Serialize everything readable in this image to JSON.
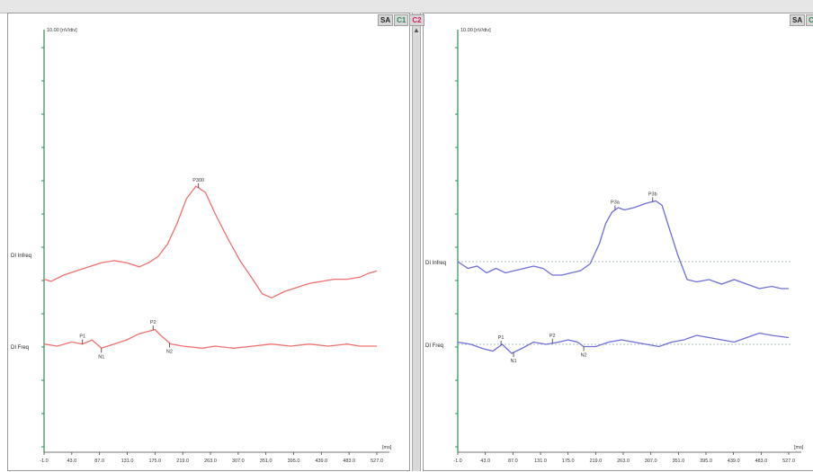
{
  "colors": {
    "axis": "#2e8b57",
    "red": "#f07070",
    "blue": "#6e6ed8",
    "gray": "#9aa"
  },
  "panes": [
    {
      "chips": [
        {
          "label": "SA",
          "color": "#222"
        },
        {
          "label": "C1",
          "color": "#2e8b57"
        },
        {
          "label": "C2",
          "color": "#d81b60"
        }
      ],
      "scale": "10.00 [nV/div]",
      "unit": "[ms]",
      "xticks": [
        "-1.0",
        "43.0",
        "87.0",
        "131.0",
        "175.0",
        "219.0",
        "263.0",
        "307.0",
        "351.0",
        "395.0",
        "439.0",
        "483.0",
        "527.0"
      ],
      "labels": {
        "infreq": "DI Infreq",
        "freq": "DI Freq"
      },
      "traces": [
        {
          "id": "infreq",
          "color": "#f07070",
          "points": [
            [
              -1,
              -12
            ],
            [
              10,
              -13
            ],
            [
              30,
              -10
            ],
            [
              50,
              -8
            ],
            [
              70,
              -6
            ],
            [
              90,
              -4
            ],
            [
              110,
              -3
            ],
            [
              130,
              -4
            ],
            [
              150,
              -6
            ],
            [
              165,
              -4
            ],
            [
              180,
              -1
            ],
            [
              195,
              5
            ],
            [
              210,
              15
            ],
            [
              225,
              27
            ],
            [
              240,
              33
            ],
            [
              255,
              30
            ],
            [
              270,
              20
            ],
            [
              290,
              8
            ],
            [
              310,
              -3
            ],
            [
              330,
              -12
            ],
            [
              345,
              -19
            ],
            [
              360,
              -21
            ],
            [
              380,
              -18
            ],
            [
              400,
              -16
            ],
            [
              420,
              -14
            ],
            [
              440,
              -13
            ],
            [
              460,
              -12
            ],
            [
              480,
              -12
            ],
            [
              500,
              -11
            ],
            [
              515,
              -9
            ],
            [
              527,
              -8
            ]
          ]
        },
        {
          "id": "freq",
          "color": "#f07070",
          "points": [
            [
              -1,
              1
            ],
            [
              20,
              0
            ],
            [
              43,
              2
            ],
            [
              60,
              1
            ],
            [
              75,
              3
            ],
            [
              90,
              -1
            ],
            [
              110,
              1
            ],
            [
              130,
              3
            ],
            [
              150,
              6
            ],
            [
              175,
              8
            ],
            [
              185,
              5
            ],
            [
              200,
              1
            ],
            [
              219,
              0
            ],
            [
              250,
              -1
            ],
            [
              270,
              0
            ],
            [
              300,
              -1
            ],
            [
              330,
              0
            ],
            [
              360,
              1
            ],
            [
              390,
              0
            ],
            [
              420,
              1
            ],
            [
              450,
              0
            ],
            [
              480,
              1
            ],
            [
              500,
              0
            ],
            [
              527,
              0
            ]
          ]
        }
      ],
      "peaks": [
        {
          "label": "P300",
          "x": 244,
          "trace": "infreq"
        },
        {
          "label": "P1",
          "x": 60,
          "trace": "freq"
        },
        {
          "label": "N1",
          "x": 90,
          "trace": "freq"
        },
        {
          "label": "P2",
          "x": 172,
          "trace": "freq"
        },
        {
          "label": "N2",
          "x": 198,
          "trace": "freq"
        }
      ],
      "dashed": false
    },
    {
      "chips": [
        {
          "label": "SA",
          "color": "#222"
        },
        {
          "label": "C1",
          "color": "#2e8b57"
        }
      ],
      "scale": "10.00 [nV/div]",
      "unit": "[ms]",
      "xticks": [
        "-1.0",
        "43.0",
        "87.0",
        "131.0",
        "175.0",
        "219.0",
        "263.0",
        "307.0",
        "351.0",
        "395.0",
        "439.0",
        "483.0",
        "527.0"
      ],
      "labels": {
        "infreq": "DI Infreq",
        "freq": "DI Freq"
      },
      "traces": [
        {
          "id": "infreq",
          "color": "#6e6ed8",
          "points": [
            [
              -1,
              0
            ],
            [
              15,
              -3
            ],
            [
              30,
              -2
            ],
            [
              45,
              -5
            ],
            [
              60,
              -3
            ],
            [
              75,
              -5
            ],
            [
              90,
              -4
            ],
            [
              105,
              -3
            ],
            [
              120,
              -2
            ],
            [
              135,
              -3
            ],
            [
              150,
              -6
            ],
            [
              165,
              -6
            ],
            [
              180,
              -5
            ],
            [
              195,
              -4
            ],
            [
              210,
              -1
            ],
            [
              225,
              8
            ],
            [
              235,
              17
            ],
            [
              245,
              22
            ],
            [
              255,
              24
            ],
            [
              265,
              23
            ],
            [
              280,
              24
            ],
            [
              300,
              26
            ],
            [
              315,
              27
            ],
            [
              325,
              25
            ],
            [
              335,
              16
            ],
            [
              350,
              3
            ],
            [
              365,
              -8
            ],
            [
              380,
              -9
            ],
            [
              400,
              -8
            ],
            [
              420,
              -10
            ],
            [
              440,
              -8
            ],
            [
              460,
              -10
            ],
            [
              480,
              -12
            ],
            [
              500,
              -11
            ],
            [
              515,
              -12
            ],
            [
              527,
              -12
            ]
          ]
        },
        {
          "id": "freq",
          "color": "#6e6ed8",
          "points": [
            [
              -1,
              1
            ],
            [
              20,
              0
            ],
            [
              40,
              -2
            ],
            [
              55,
              -3
            ],
            [
              70,
              0
            ],
            [
              85,
              -4
            ],
            [
              100,
              -2
            ],
            [
              120,
              1
            ],
            [
              140,
              0
            ],
            [
              160,
              1
            ],
            [
              175,
              2
            ],
            [
              190,
              1
            ],
            [
              200,
              -1
            ],
            [
              219,
              -1
            ],
            [
              240,
              1
            ],
            [
              260,
              2
            ],
            [
              280,
              1
            ],
            [
              300,
              0
            ],
            [
              320,
              -1
            ],
            [
              340,
              1
            ],
            [
              360,
              2
            ],
            [
              380,
              4
            ],
            [
              400,
              3
            ],
            [
              420,
              2
            ],
            [
              440,
              1
            ],
            [
              460,
              3
            ],
            [
              480,
              5
            ],
            [
              500,
              4
            ],
            [
              527,
              3
            ]
          ]
        }
      ],
      "peaks": [
        {
          "label": "P3a",
          "x": 250,
          "trace": "infreq"
        },
        {
          "label": "P3b",
          "x": 310,
          "trace": "infreq"
        },
        {
          "label": "P1",
          "x": 68,
          "trace": "freq"
        },
        {
          "label": "N1",
          "x": 88,
          "trace": "freq"
        },
        {
          "label": "P2",
          "x": 150,
          "trace": "freq"
        },
        {
          "label": "N2",
          "x": 200,
          "trace": "freq"
        }
      ],
      "dashed": true
    }
  ]
}
